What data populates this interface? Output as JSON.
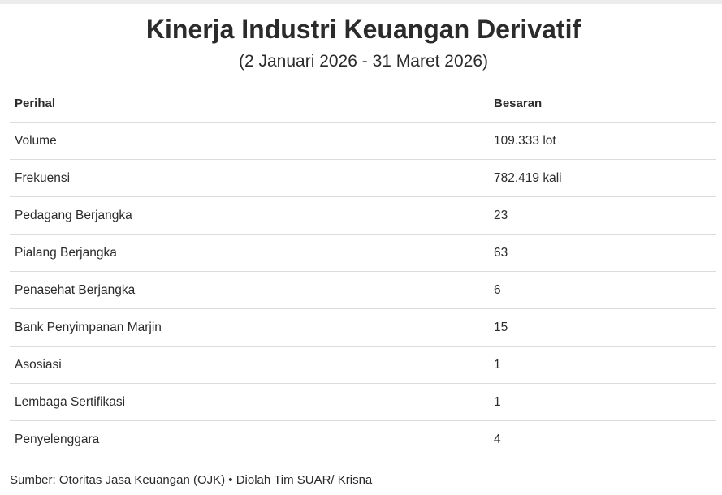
{
  "title": "Kinerja Industri Keuangan Derivatif",
  "subtitle": "(2 Januari 2026 - 31 Maret 2026)",
  "table": {
    "headers": [
      "Perihal",
      "Besaran"
    ],
    "rows": [
      [
        "Volume",
        "109.333 lot"
      ],
      [
        "Frekuensi",
        "782.419 kali"
      ],
      [
        "Pedagang Berjangka",
        "23"
      ],
      [
        "Pialang Berjangka",
        "63"
      ],
      [
        "Penasehat Berjangka",
        "6"
      ],
      [
        "Bank Penyimpanan Marjin",
        "15"
      ],
      [
        "Asosiasi",
        "1"
      ],
      [
        "Lembaga Sertifikasi",
        "1"
      ],
      [
        "Penyelenggara",
        "4"
      ]
    ]
  },
  "source": "Sumber: Otoritas Jasa Keuangan (OJK) • Diolah Tim SUAR/ Krisna"
}
